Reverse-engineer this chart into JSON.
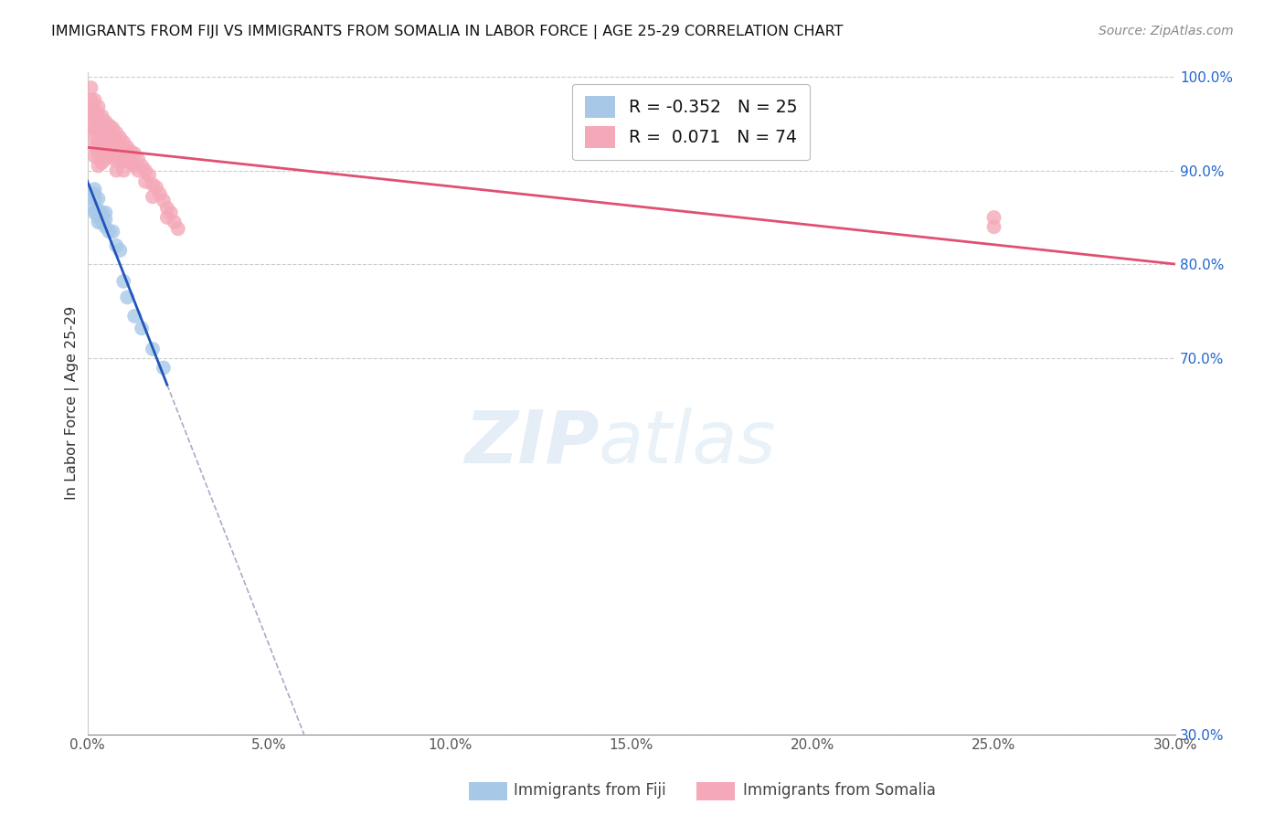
{
  "title": "IMMIGRANTS FROM FIJI VS IMMIGRANTS FROM SOMALIA IN LABOR FORCE | AGE 25-29 CORRELATION CHART",
  "source": "Source: ZipAtlas.com",
  "ylabel": "In Labor Force | Age 25-29",
  "xmin": 0.0,
  "xmax": 0.3,
  "ymin": 0.3,
  "ymax": 1.005,
  "fiji_R": -0.352,
  "fiji_N": 25,
  "somalia_R": 0.071,
  "somalia_N": 74,
  "fiji_color": "#a8c8e8",
  "somalia_color": "#f4a8b8",
  "fiji_line_color": "#2255bb",
  "somalia_line_color": "#e05070",
  "fiji_scatter_x": [
    0.001,
    0.001,
    0.002,
    0.002,
    0.002,
    0.002,
    0.003,
    0.003,
    0.003,
    0.003,
    0.004,
    0.004,
    0.005,
    0.005,
    0.005,
    0.006,
    0.007,
    0.008,
    0.009,
    0.01,
    0.011,
    0.013,
    0.015,
    0.018,
    0.021
  ],
  "fiji_scatter_y": [
    0.875,
    0.86,
    0.88,
    0.875,
    0.87,
    0.855,
    0.87,
    0.858,
    0.85,
    0.845,
    0.855,
    0.845,
    0.855,
    0.848,
    0.84,
    0.835,
    0.835,
    0.82,
    0.815,
    0.782,
    0.765,
    0.745,
    0.732,
    0.71,
    0.69
  ],
  "somalia_scatter_x": [
    0.001,
    0.001,
    0.001,
    0.001,
    0.001,
    0.002,
    0.002,
    0.002,
    0.002,
    0.002,
    0.002,
    0.002,
    0.003,
    0.003,
    0.003,
    0.003,
    0.003,
    0.003,
    0.003,
    0.004,
    0.004,
    0.004,
    0.004,
    0.004,
    0.004,
    0.005,
    0.005,
    0.005,
    0.005,
    0.005,
    0.006,
    0.006,
    0.006,
    0.006,
    0.007,
    0.007,
    0.007,
    0.007,
    0.008,
    0.008,
    0.008,
    0.008,
    0.008,
    0.009,
    0.009,
    0.009,
    0.01,
    0.01,
    0.01,
    0.01,
    0.011,
    0.011,
    0.012,
    0.012,
    0.013,
    0.013,
    0.014,
    0.014,
    0.015,
    0.016,
    0.016,
    0.017,
    0.018,
    0.018,
    0.019,
    0.02,
    0.021,
    0.022,
    0.022,
    0.023,
    0.024,
    0.025,
    0.25,
    0.25
  ],
  "somalia_scatter_y": [
    0.988,
    0.975,
    0.965,
    0.958,
    0.945,
    0.975,
    0.965,
    0.958,
    0.945,
    0.935,
    0.925,
    0.915,
    0.968,
    0.958,
    0.945,
    0.935,
    0.925,
    0.915,
    0.905,
    0.958,
    0.948,
    0.938,
    0.928,
    0.918,
    0.908,
    0.952,
    0.942,
    0.932,
    0.922,
    0.912,
    0.948,
    0.938,
    0.928,
    0.918,
    0.945,
    0.935,
    0.925,
    0.915,
    0.94,
    0.93,
    0.92,
    0.91,
    0.9,
    0.935,
    0.925,
    0.915,
    0.93,
    0.92,
    0.91,
    0.9,
    0.925,
    0.912,
    0.92,
    0.908,
    0.918,
    0.905,
    0.912,
    0.9,
    0.905,
    0.9,
    0.888,
    0.895,
    0.885,
    0.872,
    0.882,
    0.875,
    0.868,
    0.86,
    0.85,
    0.855,
    0.845,
    0.838,
    0.84,
    0.85
  ],
  "watermark_zip": "ZIP",
  "watermark_atlas": "atlas",
  "xtick_labels": [
    "0.0%",
    "5.0%",
    "10.0%",
    "15.0%",
    "20.0%",
    "25.0%",
    "30.0%"
  ],
  "xtick_values": [
    0.0,
    0.05,
    0.1,
    0.15,
    0.2,
    0.25,
    0.3
  ],
  "ytick_labels": [
    "30.0%",
    "70.0%",
    "80.0%",
    "90.0%",
    "100.0%"
  ],
  "ytick_values": [
    0.3,
    0.7,
    0.8,
    0.9,
    1.0
  ],
  "legend_fiji_label": "Immigrants from Fiji",
  "legend_somalia_label": "Immigrants from Somalia",
  "fiji_line_x_start": 0.0,
  "fiji_line_x_end_solid": 0.022,
  "fiji_line_x_end_dashed": 0.145,
  "somalia_line_x_start": 0.0,
  "somalia_line_x_end": 0.3
}
